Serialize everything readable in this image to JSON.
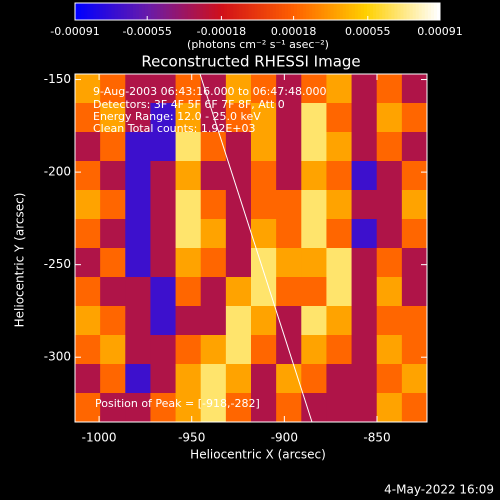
{
  "chart_data": {
    "type": "heatmap",
    "title": "Reconstructed RHESSI Image",
    "x_label": "Heliocentric X (arcsec)",
    "y_label": "Heliocentric Y (arcsec)",
    "colorbar_label": "(photons cm⁻² s⁻¹ asec⁻²)",
    "annotations": [
      "9-Aug-2003 06:43:16.000 to 06:47:48.000",
      "Detectors: 3F 4F 5F 6F 7F 8F, Att 0",
      "Energy Range: 12.0 - 25.0 keV",
      "Clean     Total counts: 1.92E+03"
    ],
    "peak_label": "Position of Peak = [-918,-282]",
    "timestamp": "4-May-2022 16:09",
    "xlim": [
      -1013,
      -823
    ],
    "ylim": [
      -335,
      -147
    ],
    "xticks": [
      -1000,
      -950,
      -900,
      -850
    ],
    "yticks": [
      -300,
      -250,
      -200,
      -150
    ],
    "clim": [
      -0.00091,
      0.00091
    ],
    "cticks": [
      -0.00091,
      -0.00055,
      -0.00018,
      0.00018,
      0.00055,
      0.00091
    ],
    "colormap": [
      "#0000ff",
      "#6a1ba8",
      "#d0101a",
      "#ff6000",
      "#ffd000",
      "#ffffff"
    ],
    "z": [
      [
        0.0004,
        0.0002,
        -0.0003,
        -0.0003,
        0.0002,
        -0.0003,
        0.0004,
        0.0002,
        -0.0003,
        0.0002,
        0.0004,
        -0.0003,
        0.0002,
        -0.0003
      ],
      [
        0.0002,
        0.0004,
        -0.0003,
        -0.0007,
        0.0004,
        -0.0003,
        0.0002,
        0.0004,
        -0.0003,
        0.0007,
        0.0002,
        -0.0003,
        0.0004,
        0.0002
      ],
      [
        -0.0003,
        0.0002,
        -0.0007,
        -0.0007,
        0.0007,
        0.0002,
        -0.0003,
        0.0004,
        -0.0003,
        0.0007,
        0.0004,
        -0.0003,
        0.0002,
        -0.0003
      ],
      [
        0.0002,
        -0.0003,
        -0.0007,
        -0.0003,
        0.0004,
        -0.0003,
        -0.0003,
        0.0002,
        -0.0003,
        0.0004,
        0.0002,
        -0.0007,
        -0.0003,
        0.0002
      ],
      [
        0.0004,
        0.0002,
        -0.0007,
        -0.0003,
        0.0007,
        0.0002,
        -0.0003,
        0.0002,
        0.0002,
        0.0007,
        0.0004,
        -0.0003,
        -0.0003,
        0.0004
      ],
      [
        0.0002,
        -0.0003,
        -0.0007,
        -0.0003,
        0.0007,
        0.0004,
        -0.0003,
        0.0004,
        0.0002,
        0.0007,
        0.0002,
        -0.0007,
        -0.0003,
        0.0002
      ],
      [
        -0.0003,
        0.0002,
        -0.0007,
        -0.0003,
        0.0004,
        0.0002,
        -0.0003,
        0.0007,
        0.0004,
        0.0004,
        0.0007,
        -0.0003,
        0.0002,
        -0.0003
      ],
      [
        0.0002,
        -0.0003,
        -0.0003,
        -0.0007,
        0.0002,
        -0.0003,
        0.0004,
        0.0007,
        0.0002,
        0.0002,
        0.0007,
        -0.0003,
        0.0004,
        -0.0003
      ],
      [
        0.0004,
        0.0002,
        -0.0003,
        -0.0007,
        -0.0003,
        -0.0003,
        0.0007,
        0.0004,
        -0.0003,
        0.0007,
        0.0004,
        -0.0003,
        0.0002,
        0.0002
      ],
      [
        0.0002,
        0.0004,
        -0.0003,
        -0.0003,
        0.0002,
        0.0004,
        0.0007,
        0.0002,
        -0.0003,
        0.0004,
        0.0002,
        -0.0003,
        0.0004,
        0.0002
      ],
      [
        -0.0003,
        0.0002,
        -0.0007,
        -0.0003,
        0.0004,
        0.0007,
        0.0004,
        -0.0003,
        0.0004,
        0.0002,
        -0.0003,
        -0.0003,
        0.0002,
        0.0004
      ],
      [
        0.0002,
        -0.0003,
        -0.0003,
        0.0002,
        0.0004,
        0.0007,
        0.0002,
        -0.0003,
        0.0002,
        -0.0003,
        -0.0003,
        -0.0003,
        0.0004,
        0.0002
      ]
    ]
  }
}
